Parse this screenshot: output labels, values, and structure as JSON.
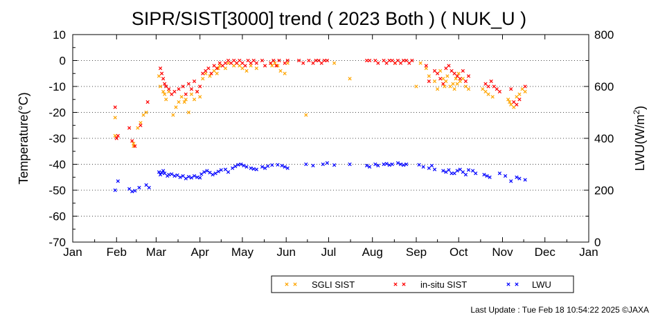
{
  "chart_data": {
    "type": "scatter",
    "title": "SIPR/SIST[3000] trend ( 2023 Both ) ( NUK_U )",
    "ylabel": "Temperature(°C)",
    "y2label_main": "LWU(W/m",
    "y2label_sup": "2",
    "y2label_end": ")",
    "ylim": [
      -70,
      10
    ],
    "yticks": [
      10,
      0,
      -10,
      -20,
      -30,
      -40,
      -50,
      -60,
      -70
    ],
    "y2lim": [
      0,
      800
    ],
    "y2ticks": [
      800,
      600,
      400,
      200,
      0
    ],
    "xlim": [
      0,
      365
    ],
    "months": [
      {
        "label": "Jan",
        "day": 0
      },
      {
        "label": "Feb",
        "day": 31
      },
      {
        "label": "Mar",
        "day": 59
      },
      {
        "label": "Apr",
        "day": 90
      },
      {
        "label": "May",
        "day": 120
      },
      {
        "label": "Jun",
        "day": 151
      },
      {
        "label": "Jul",
        "day": 181
      },
      {
        "label": "Aug",
        "day": 212
      },
      {
        "label": "Sep",
        "day": 243
      },
      {
        "label": "Oct",
        "day": 273
      },
      {
        "label": "Nov",
        "day": 304
      },
      {
        "label": "Dec",
        "day": 334
      },
      {
        "label": "Jan",
        "day": 365
      }
    ],
    "grid": "dotted-horizontal",
    "legend_position": "bottom-right",
    "series": [
      {
        "name": "SGLI SIST",
        "color": "#ffa500",
        "axis": "left",
        "x": [
          30,
          30,
          43,
          43,
          46,
          48,
          50,
          52,
          61,
          62,
          64,
          65,
          66,
          68,
          71,
          73,
          75,
          77,
          79,
          80,
          82,
          84,
          86,
          88,
          90,
          92,
          94,
          97,
          100,
          102,
          103,
          104,
          108,
          110,
          114,
          116,
          118,
          120,
          123,
          126,
          130,
          140,
          141,
          143,
          145,
          147,
          150,
          152,
          165,
          185,
          196,
          228,
          243,
          246,
          250,
          252,
          256,
          258,
          260,
          262,
          263,
          264,
          265,
          267,
          269,
          270,
          271,
          272,
          273,
          274,
          276,
          278,
          280,
          290,
          292,
          294,
          297,
          308,
          309,
          310,
          312,
          314,
          316,
          318,
          320
        ],
        "y": [
          -22,
          -29,
          -33,
          -32,
          -26,
          -24,
          -21,
          -20,
          -6,
          -10,
          -12,
          -13,
          -15,
          -12,
          -21,
          -18,
          -16,
          -14,
          -16,
          -15,
          -20,
          -13,
          -15,
          -12,
          -14,
          -7,
          -5,
          -6,
          -4,
          -5,
          -3,
          -2,
          -3,
          -1,
          -2,
          -1,
          -2,
          -3,
          -4,
          -2,
          -3,
          -1,
          -2,
          -1,
          -2,
          -4,
          -5,
          -1,
          -21,
          -1,
          -7,
          -1,
          -10,
          -1,
          -3,
          -6,
          -8,
          -11,
          -4,
          -7,
          -10,
          -8,
          -6,
          -10,
          -9,
          -11,
          -7,
          -9,
          -5,
          -8,
          -7,
          -10,
          -11,
          -11,
          -12,
          -13,
          -14,
          -15,
          -16,
          -17,
          -18,
          -14,
          -13,
          -11,
          -12
        ]
      },
      {
        "name": "in-situ SIST",
        "color": "#ff0000",
        "axis": "left",
        "x": [
          30,
          31,
          32,
          40,
          42,
          44,
          48,
          53,
          62,
          63,
          64,
          65,
          66,
          68,
          70,
          72,
          75,
          78,
          80,
          82,
          84,
          86,
          88,
          90,
          92,
          94,
          96,
          98,
          100,
          102,
          104,
          106,
          108,
          110,
          112,
          114,
          116,
          118,
          120,
          122,
          124,
          126,
          128,
          130,
          134,
          136,
          140,
          142,
          144,
          146,
          150,
          152,
          160,
          163,
          167,
          170,
          172,
          174,
          176,
          178,
          180,
          208,
          210,
          214,
          216,
          220,
          222,
          224,
          226,
          228,
          230,
          232,
          234,
          236,
          238,
          240,
          250,
          252,
          256,
          258,
          260,
          262,
          264,
          266,
          268,
          270,
          272,
          274,
          276,
          278,
          280,
          292,
          294,
          296,
          298,
          300,
          302,
          310,
          312,
          314,
          316,
          320
        ],
        "y": [
          -18,
          -30,
          -29,
          -26,
          -31,
          -33,
          -25,
          -16,
          -3,
          -5,
          -7,
          -9,
          -10,
          -11,
          -13,
          -12,
          -11,
          -10,
          -13,
          -9,
          -11,
          -8,
          -12,
          -10,
          -5,
          -4,
          -3,
          -5,
          -2,
          -3,
          -1,
          -2,
          -1,
          0,
          -1,
          0,
          -1,
          0,
          -1,
          -2,
          0,
          -1,
          0,
          -1,
          0,
          -2,
          -1,
          0,
          -2,
          0,
          -1,
          0,
          0,
          -1,
          0,
          -1,
          0,
          0,
          -1,
          0,
          0,
          0,
          0,
          0,
          -1,
          0,
          -1,
          0,
          0,
          -1,
          0,
          -1,
          0,
          0,
          -1,
          0,
          -2,
          -8,
          -4,
          -5,
          -7,
          -9,
          -3,
          -2,
          -4,
          -5,
          -6,
          -7,
          -4,
          -8,
          -6,
          -9,
          -10,
          -8,
          -10,
          -11,
          -12,
          -11,
          -16,
          -17,
          -15,
          -10
        ]
      },
      {
        "name": "LWU",
        "color": "#0000ff",
        "axis": "right",
        "x": [
          30,
          32,
          40,
          42,
          44,
          47,
          52,
          54,
          61,
          62,
          63,
          64,
          65,
          67,
          68,
          70,
          72,
          74,
          76,
          78,
          80,
          82,
          84,
          86,
          88,
          90,
          91,
          93,
          95,
          97,
          99,
          101,
          103,
          105,
          108,
          110,
          113,
          115,
          117,
          119,
          121,
          123,
          126,
          128,
          130,
          134,
          136,
          138,
          141,
          145,
          148,
          150,
          152,
          165,
          170,
          177,
          180,
          185,
          196,
          208,
          210,
          214,
          216,
          220,
          222,
          224,
          226,
          230,
          232,
          234,
          236,
          245,
          248,
          252,
          254,
          256,
          262,
          264,
          266,
          268,
          270,
          272,
          274,
          276,
          278,
          280,
          283,
          285,
          291,
          293,
          295,
          302,
          306,
          310,
          314,
          316,
          320
        ],
        "y": [
          200,
          235,
          205,
          195,
          198,
          210,
          220,
          210,
          270,
          260,
          268,
          275,
          265,
          255,
          260,
          262,
          255,
          258,
          250,
          255,
          245,
          252,
          248,
          255,
          250,
          248,
          262,
          270,
          275,
          268,
          260,
          265,
          272,
          278,
          280,
          270,
          285,
          292,
          298,
          300,
          295,
          290,
          285,
          282,
          280,
          290,
          285,
          293,
          297,
          298,
          295,
          290,
          285,
          300,
          295,
          300,
          305,
          297,
          300,
          295,
          290,
          300,
          295,
          300,
          302,
          297,
          300,
          305,
          300,
          297,
          300,
          298,
          290,
          285,
          295,
          280,
          275,
          270,
          278,
          265,
          265,
          275,
          280,
          270,
          260,
          278,
          275,
          265,
          260,
          255,
          250,
          265,
          255,
          235,
          250,
          245,
          240
        ]
      }
    ],
    "last_update": "Last Update : Tue Feb 18 10:54:22 2025  ©JAXA"
  }
}
